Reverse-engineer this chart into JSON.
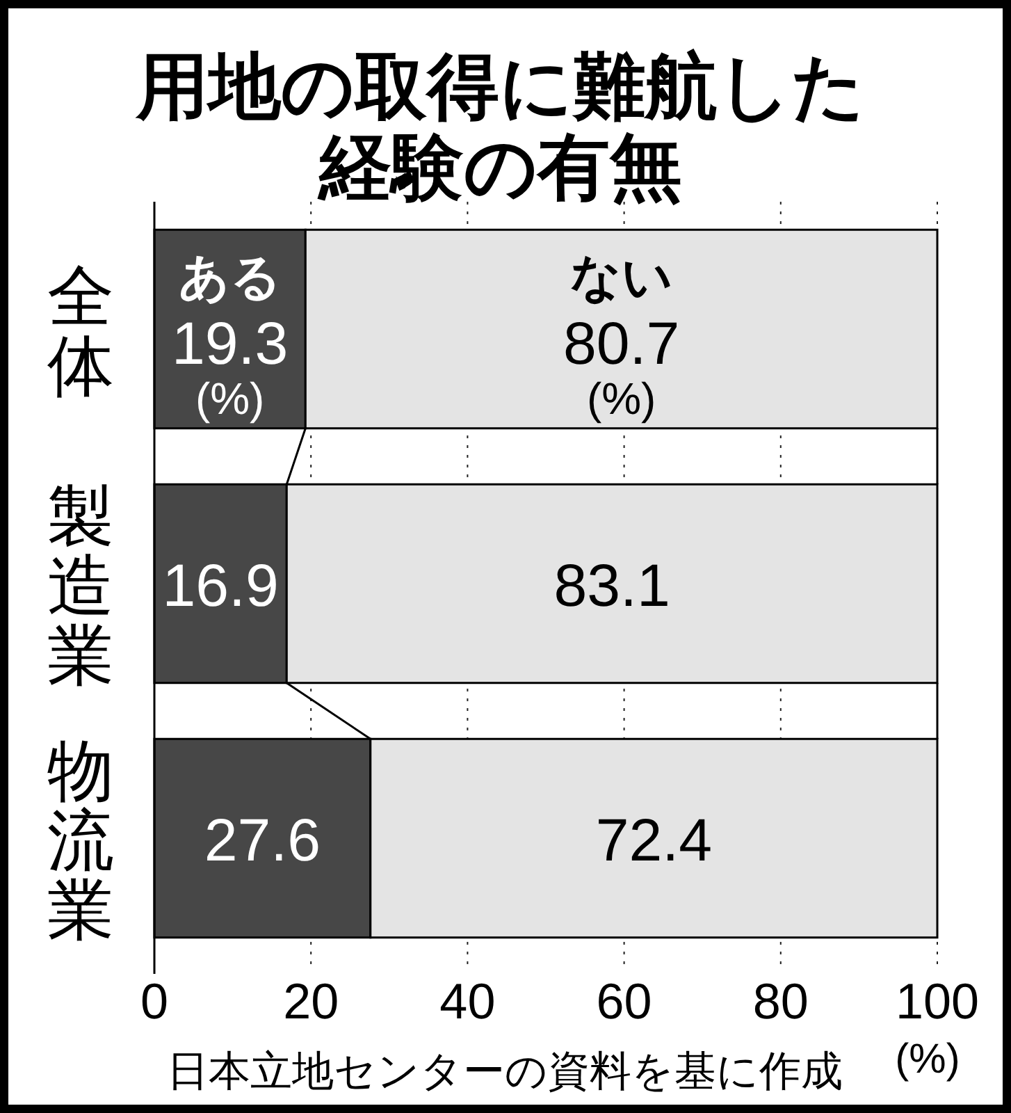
{
  "chart_data": {
    "type": "bar",
    "orientation": "horizontal",
    "stacked": true,
    "title": "用地の取得に難航した経験の有無",
    "categories": [
      "全体",
      "製造業",
      "物流業"
    ],
    "series": [
      {
        "name": "ある",
        "color": "#474747",
        "values": [
          19.3,
          16.9,
          27.6
        ]
      },
      {
        "name": "ない",
        "color": "#e4e4e4",
        "values": [
          80.7,
          83.1,
          72.4
        ]
      }
    ],
    "xlim": [
      0,
      100
    ],
    "xticks": [
      0,
      20,
      40,
      60,
      80,
      100
    ],
    "xlabel": "(%)",
    "grid": "x",
    "data_labels": true,
    "annotations": [
      "(%)",
      "(%)",
      "日本立地センターの資料を基に作成"
    ]
  }
}
